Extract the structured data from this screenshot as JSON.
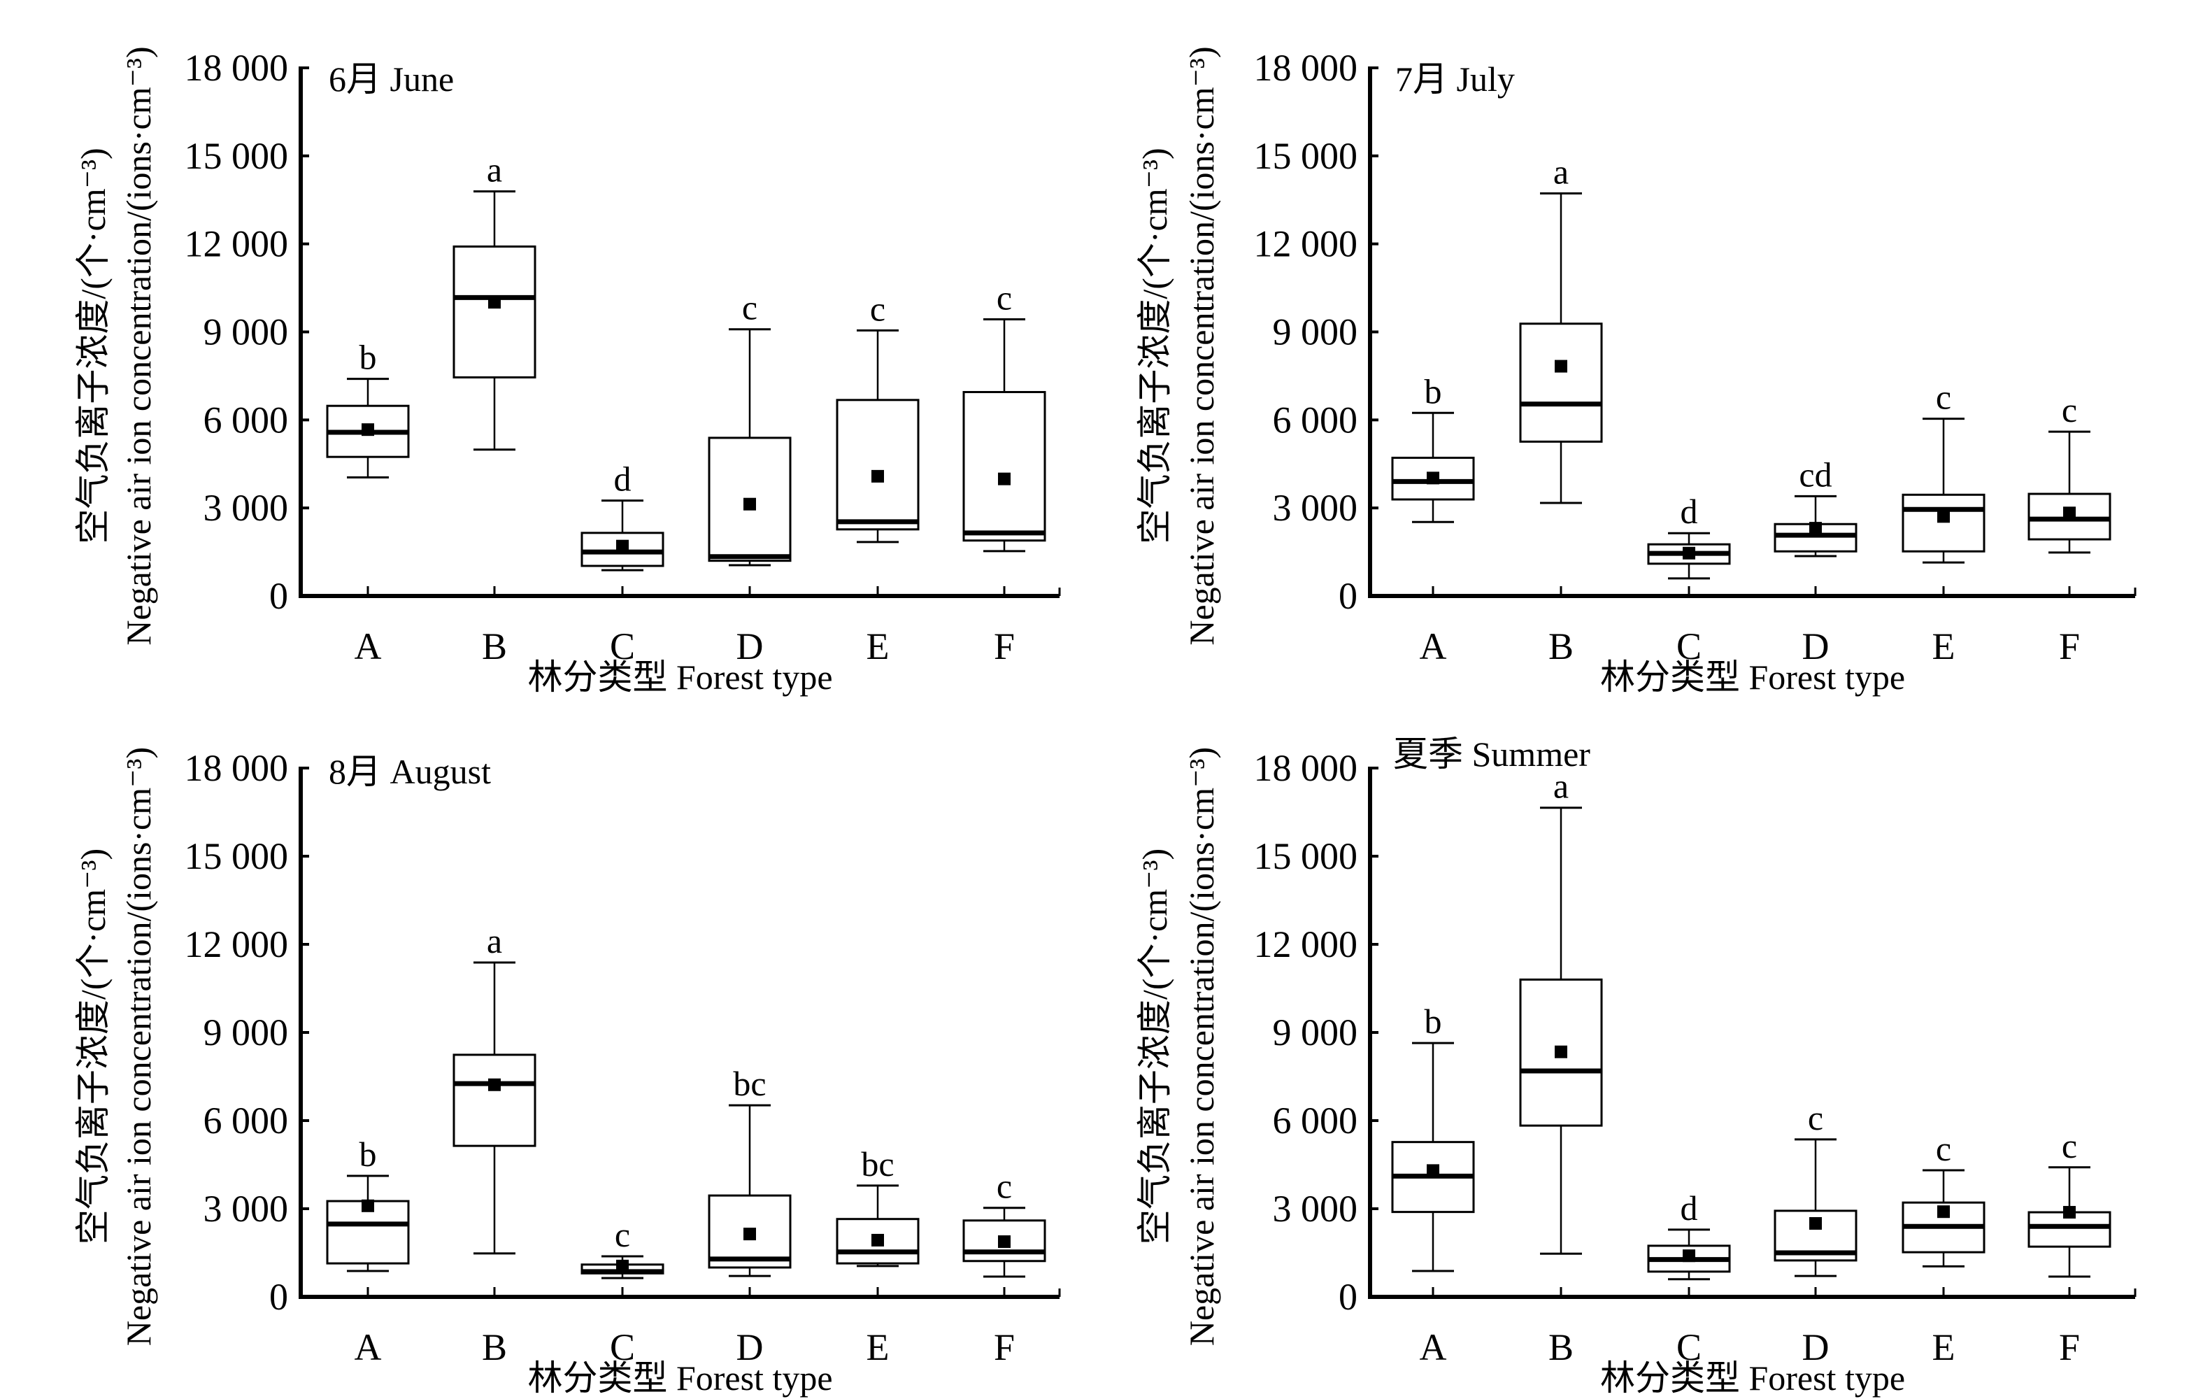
{
  "chart_data": [
    {
      "type": "box",
      "title": "6月 June",
      "xlabel": "林分类型 Forest type",
      "ylabel_cn": "空气负离子浓度/(个·cm⁻³)",
      "ylabel_en": "Negative air ion concentration/(ions·cm⁻³)",
      "ylim": [
        0,
        18000
      ],
      "yticks": [
        0,
        3000,
        6000,
        9000,
        12000,
        15000,
        18000
      ],
      "ytick_labels": [
        "0",
        "3 000",
        "6 000",
        "9 000",
        "12 000",
        "15 000",
        "18 000"
      ],
      "categories": [
        "A",
        "B",
        "C",
        "D",
        "E",
        "F"
      ],
      "boxes": [
        {
          "category": "A",
          "whisker_low": 4040,
          "q1": 4740,
          "median": 5580,
          "mean": 5670,
          "q3": 6480,
          "whisker_high": 7400,
          "sig": "b"
        },
        {
          "category": "B",
          "whisker_low": 4990,
          "q1": 7450,
          "median": 10170,
          "mean": 10010,
          "q3": 11910,
          "whisker_high": 13790,
          "sig": "a"
        },
        {
          "category": "C",
          "whisker_low": 880,
          "q1": 1025,
          "median": 1500,
          "mean": 1700,
          "q3": 2150,
          "whisker_high": 3250,
          "sig": "d"
        },
        {
          "category": "D",
          "whisker_low": 1050,
          "q1": 1200,
          "median": 1340,
          "mean": 3130,
          "q3": 5390,
          "whisker_high": 9090,
          "sig": "c"
        },
        {
          "category": "E",
          "whisker_low": 1840,
          "q1": 2270,
          "median": 2530,
          "mean": 4080,
          "q3": 6680,
          "whisker_high": 9050,
          "sig": "c"
        },
        {
          "category": "F",
          "whisker_low": 1530,
          "q1": 1890,
          "median": 2150,
          "mean": 3990,
          "q3": 6950,
          "whisker_high": 9430,
          "sig": "c"
        }
      ]
    },
    {
      "type": "box",
      "title": "7月 July",
      "xlabel": "林分类型 Forest type",
      "ylabel_cn": "空气负离子浓度/(个·cm⁻³)",
      "ylabel_en": "Negative air ion concentration/(ions·cm⁻³)",
      "ylim": [
        0,
        18000
      ],
      "yticks": [
        0,
        3000,
        6000,
        9000,
        12000,
        15000,
        18000
      ],
      "ytick_labels": [
        "0",
        "3 000",
        "6 000",
        "9 000",
        "12 000",
        "15 000",
        "18 000"
      ],
      "categories": [
        "A",
        "B",
        "C",
        "D",
        "E",
        "F"
      ],
      "boxes": [
        {
          "category": "A",
          "whisker_low": 2520,
          "q1": 3290,
          "median": 3900,
          "mean": 4020,
          "q3": 4710,
          "whisker_high": 6240,
          "sig": "b"
        },
        {
          "category": "B",
          "whisker_low": 3170,
          "q1": 5260,
          "median": 6540,
          "mean": 7830,
          "q3": 9280,
          "whisker_high": 13720,
          "sig": "a"
        },
        {
          "category": "C",
          "whisker_low": 600,
          "q1": 1100,
          "median": 1450,
          "mean": 1460,
          "q3": 1760,
          "whisker_high": 2140,
          "sig": "d"
        },
        {
          "category": "D",
          "whisker_low": 1360,
          "q1": 1520,
          "median": 2070,
          "mean": 2310,
          "q3": 2450,
          "whisker_high": 3400,
          "sig": "cd"
        },
        {
          "category": "E",
          "whisker_low": 1140,
          "q1": 1520,
          "median": 2950,
          "mean": 2710,
          "q3": 3450,
          "whisker_high": 6040,
          "sig": "c"
        },
        {
          "category": "F",
          "whisker_low": 1480,
          "q1": 1930,
          "median": 2620,
          "mean": 2830,
          "q3": 3480,
          "whisker_high": 5600,
          "sig": "c"
        }
      ]
    },
    {
      "type": "box",
      "title": "8月 August",
      "xlabel": "林分类型 Forest type",
      "ylabel_cn": "空气负离子浓度/(个·cm⁻³)",
      "ylabel_en": "Negative air ion concentration/(ions·cm⁻³)",
      "ylim": [
        0,
        18000
      ],
      "yticks": [
        0,
        3000,
        6000,
        9000,
        12000,
        15000,
        18000
      ],
      "ytick_labels": [
        "0",
        "3 000",
        "6 000",
        "9 000",
        "12 000",
        "15 000",
        "18 000"
      ],
      "categories": [
        "A",
        "B",
        "C",
        "D",
        "E",
        "F"
      ],
      "boxes": [
        {
          "category": "A",
          "whisker_low": 880,
          "q1": 1140,
          "median": 2480,
          "mean": 3100,
          "q3": 3260,
          "whisker_high": 4120,
          "sig": "b"
        },
        {
          "category": "B",
          "whisker_low": 1480,
          "q1": 5140,
          "median": 7260,
          "mean": 7220,
          "q3": 8240,
          "whisker_high": 11380,
          "sig": "a"
        },
        {
          "category": "C",
          "whisker_low": 640,
          "q1": 800,
          "median": 860,
          "mean": 1050,
          "q3": 1100,
          "whisker_high": 1380,
          "sig": "c"
        },
        {
          "category": "D",
          "whisker_low": 710,
          "q1": 1000,
          "median": 1290,
          "mean": 2140,
          "q3": 3450,
          "whisker_high": 6520,
          "sig": "bc"
        },
        {
          "category": "E",
          "whisker_low": 1050,
          "q1": 1140,
          "median": 1530,
          "mean": 1930,
          "q3": 2650,
          "whisker_high": 3790,
          "sig": "bc"
        },
        {
          "category": "F",
          "whisker_low": 690,
          "q1": 1220,
          "median": 1530,
          "mean": 1880,
          "q3": 2600,
          "whisker_high": 3030,
          "sig": "c"
        }
      ]
    },
    {
      "type": "box",
      "title": "夏季 Summer",
      "xlabel": "林分类型 Forest type",
      "ylabel_cn": "空气负离子浓度/(个·cm⁻³)",
      "ylabel_en": "Negative air ion concentration/(ions·cm⁻³)",
      "ylim": [
        0,
        18000
      ],
      "yticks": [
        0,
        3000,
        6000,
        9000,
        12000,
        15000,
        18000
      ],
      "ytick_labels": [
        "0",
        "3 000",
        "6 000",
        "9 000",
        "12 000",
        "15 000",
        "18 000"
      ],
      "categories": [
        "A",
        "B",
        "C",
        "D",
        "E",
        "F"
      ],
      "boxes": [
        {
          "category": "A",
          "whisker_low": 880,
          "q1": 2890,
          "median": 4110,
          "mean": 4300,
          "q3": 5270,
          "whisker_high": 8640,
          "sig": "b"
        },
        {
          "category": "B",
          "whisker_low": 1470,
          "q1": 5830,
          "median": 7690,
          "mean": 8340,
          "q3": 10800,
          "whisker_high": 16650,
          "sig": "a"
        },
        {
          "category": "C",
          "whisker_low": 600,
          "q1": 860,
          "median": 1270,
          "mean": 1400,
          "q3": 1740,
          "whisker_high": 2290,
          "sig": "d"
        },
        {
          "category": "D",
          "whisker_low": 710,
          "q1": 1240,
          "median": 1500,
          "mean": 2500,
          "q3": 2930,
          "whisker_high": 5360,
          "sig": "c"
        },
        {
          "category": "E",
          "whisker_low": 1040,
          "q1": 1520,
          "median": 2400,
          "mean": 2900,
          "q3": 3210,
          "whisker_high": 4310,
          "sig": "c"
        },
        {
          "category": "F",
          "whisker_low": 690,
          "q1": 1710,
          "median": 2400,
          "mean": 2880,
          "q3": 2880,
          "whisker_high": 4410,
          "sig": "c"
        }
      ]
    }
  ]
}
